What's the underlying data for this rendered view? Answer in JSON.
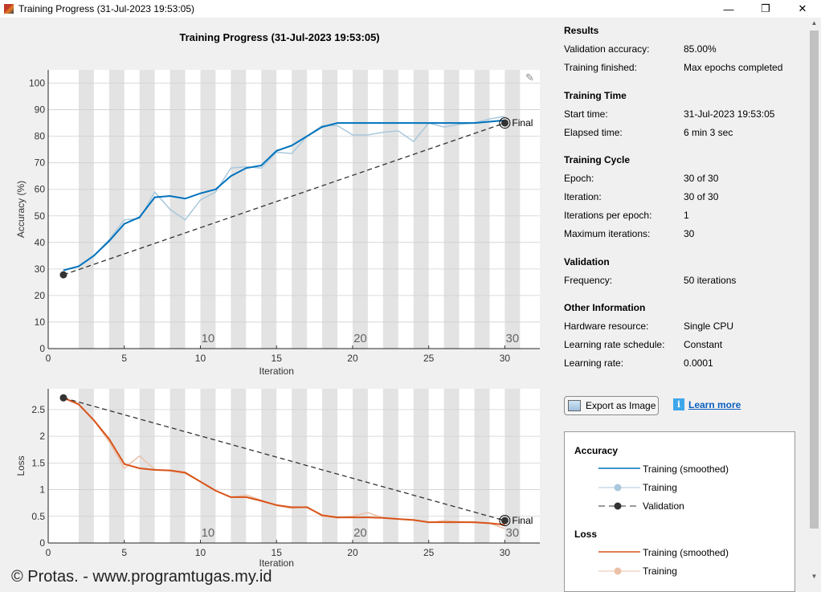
{
  "window": {
    "title": "Training Progress (31-Jul-2023 19:53:05)",
    "minimize": "—",
    "restore": "❐",
    "close": "✕"
  },
  "plot_title": "Training Progress (31-Jul-2023 19:53:05)",
  "results": {
    "sections": [
      {
        "title": "Results",
        "rows": [
          [
            "Validation accuracy:",
            "85.00%"
          ],
          [
            "Training finished:",
            "Max epochs completed"
          ]
        ]
      },
      {
        "title": "Training Time",
        "rows": [
          [
            "Start time:",
            "31-Jul-2023 19:53:05"
          ],
          [
            "Elapsed time:",
            "6 min 3 sec"
          ]
        ]
      },
      {
        "title": "Training Cycle",
        "rows": [
          [
            "Epoch:",
            "30 of 30"
          ],
          [
            "Iteration:",
            "30 of 30"
          ],
          [
            "Iterations per epoch:",
            "1"
          ],
          [
            "Maximum iterations:",
            "30"
          ]
        ]
      },
      {
        "title": "Validation",
        "rows": [
          [
            "Frequency:",
            "50 iterations"
          ]
        ]
      },
      {
        "title": "Other Information",
        "rows": [
          [
            "Hardware resource:",
            "Single CPU"
          ],
          [
            "Learning rate schedule:",
            "Constant"
          ],
          [
            "Learning rate:",
            "0.0001"
          ]
        ]
      }
    ]
  },
  "buttons": {
    "export": "Export as Image",
    "learn_more": "Learn more"
  },
  "legend": {
    "accuracy_title": "Accuracy",
    "loss_title": "Loss",
    "acc_smoothed": "Training (smoothed)",
    "acc_training": "Training",
    "acc_validation": "Validation",
    "loss_smoothed": "Training (smoothed)",
    "loss_training": "Training"
  },
  "colors": {
    "acc_smoothed": "#0072bd",
    "acc_raw": "#a9c8dc",
    "loss_smoothed": "#d95319",
    "loss_raw": "#eac0a8",
    "validation": "#333333",
    "band": "#e3e3e3"
  },
  "watermark": {
    "text": "www.programtugas.my.id",
    "copyright": "© Protas. - www.programtugas.my.id"
  },
  "chart_data": [
    {
      "type": "line",
      "name": "accuracy",
      "xlabel": "Iteration",
      "ylabel": "Accuracy (%)",
      "xlim": [
        0,
        32.3
      ],
      "ylim": [
        0,
        105
      ],
      "xticks": [
        0,
        5,
        10,
        15,
        20,
        25,
        30
      ],
      "yticks": [
        0,
        10,
        20,
        30,
        40,
        50,
        60,
        70,
        80,
        90,
        100
      ],
      "epoch_labels": [
        "10",
        "20",
        "30"
      ],
      "final_label": "Final",
      "x": [
        1,
        2,
        3,
        4,
        5,
        6,
        7,
        8,
        9,
        10,
        11,
        12,
        13,
        14,
        15,
        16,
        17,
        18,
        19,
        20,
        21,
        22,
        23,
        24,
        25,
        26,
        27,
        28,
        29,
        30
      ],
      "series": [
        {
          "name": "Training (smoothed)",
          "values": [
            29.5,
            31,
            35,
            40.5,
            47,
            49.5,
            57,
            57.5,
            56.5,
            58.5,
            60,
            65,
            68,
            69,
            74.5,
            76.5,
            80,
            83.5,
            85,
            85,
            85,
            85,
            85,
            85,
            85,
            85,
            85,
            85,
            85.5,
            86
          ]
        },
        {
          "name": "Training",
          "values": [
            29.5,
            31,
            35,
            41,
            48.5,
            49,
            59,
            52.5,
            48.5,
            56,
            59,
            68,
            68.5,
            68,
            74,
            73.5,
            80,
            84,
            84,
            80.5,
            80.5,
            81.5,
            82,
            78,
            85,
            83.5,
            84.5,
            85,
            86.5,
            87.5
          ]
        },
        {
          "name": "Validation",
          "points": [
            [
              1,
              27.8
            ],
            [
              30,
              85
            ]
          ]
        }
      ]
    },
    {
      "type": "line",
      "name": "loss",
      "xlabel": "Iteration",
      "ylabel": "Loss",
      "xlim": [
        0,
        32.3
      ],
      "ylim": [
        0,
        2.89
      ],
      "xticks": [
        0,
        5,
        10,
        15,
        20,
        25,
        30
      ],
      "yticks": [
        0,
        0.5,
        1,
        1.5,
        2,
        2.5
      ],
      "epoch_labels": [
        "10",
        "20",
        "30"
      ],
      "final_label": "Final",
      "x": [
        1,
        2,
        3,
        4,
        5,
        6,
        7,
        8,
        9,
        10,
        11,
        12,
        13,
        14,
        15,
        16,
        17,
        18,
        19,
        20,
        21,
        22,
        23,
        24,
        25,
        26,
        27,
        28,
        29,
        30
      ],
      "series": [
        {
          "name": "Training (smoothed)",
          "values": [
            2.72,
            2.6,
            2.3,
            1.95,
            1.48,
            1.4,
            1.37,
            1.36,
            1.32,
            1.15,
            0.98,
            0.86,
            0.86,
            0.79,
            0.71,
            0.67,
            0.67,
            0.52,
            0.48,
            0.48,
            0.48,
            0.47,
            0.45,
            0.43,
            0.39,
            0.39,
            0.39,
            0.39,
            0.37,
            0.34
          ]
        },
        {
          "name": "Training",
          "values": [
            2.72,
            2.6,
            2.3,
            1.9,
            1.4,
            1.63,
            1.38,
            1.35,
            1.3,
            1.15,
            0.98,
            0.85,
            0.9,
            0.8,
            0.7,
            0.65,
            0.68,
            0.5,
            0.47,
            0.5,
            0.57,
            0.47,
            0.45,
            0.44,
            0.38,
            0.42,
            0.4,
            0.38,
            0.37,
            0.27
          ]
        },
        {
          "name": "Validation",
          "points": [
            [
              1,
              2.72
            ],
            [
              30,
              0.42
            ]
          ]
        }
      ]
    }
  ]
}
